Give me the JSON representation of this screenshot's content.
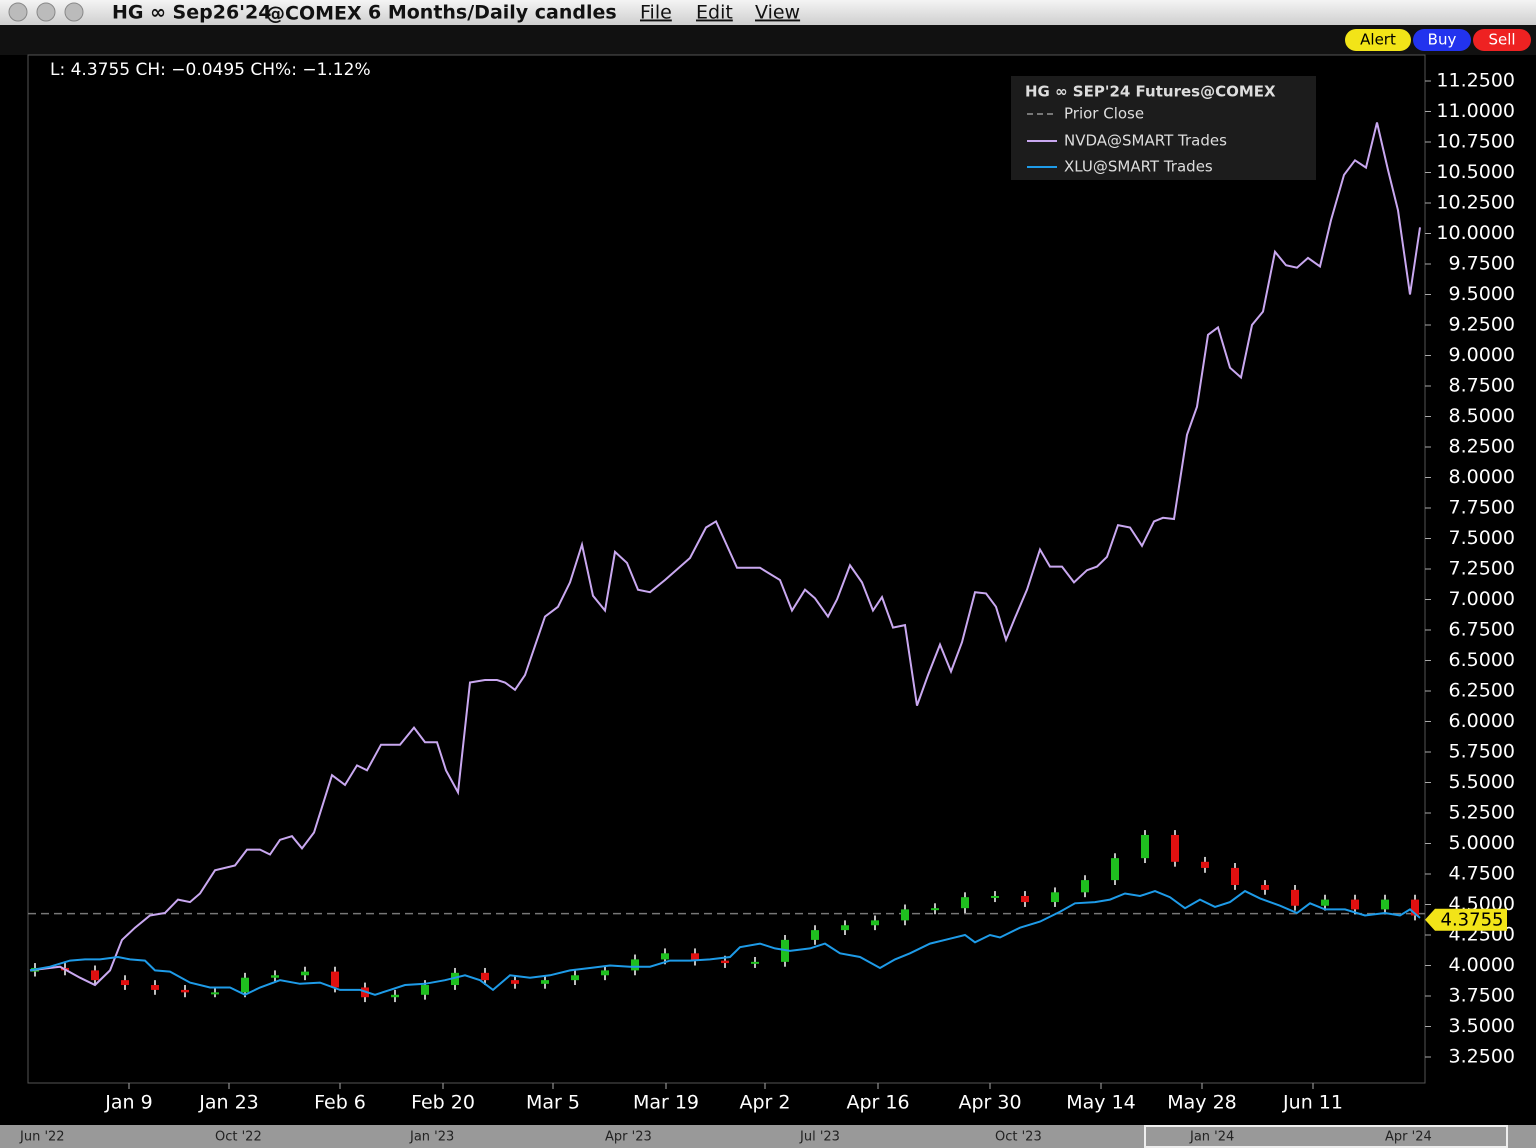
{
  "header": {
    "symbol": "HG ∞ Sep26'24",
    "exchange": "@COMEX",
    "period": "6 Months/Daily candles",
    "menus": [
      "File",
      "Edit",
      "View"
    ],
    "buttons": [
      "Alert",
      "Buy",
      "Sell"
    ]
  },
  "navigator": {
    "labels": [
      "Jun '22",
      "Oct '22",
      "Jan '23",
      "Apr '23",
      "Jul '23",
      "Oct '23",
      "Jan '24",
      "Apr '24"
    ]
  },
  "chart_data": {
    "type": "candlestick",
    "info": "L: 4.3755 CH: −0.0495 CH%: −1.12%",
    "legend_title": "HG ∞ SEP'24 Futures@COMEX",
    "prior_close": {
      "name": "Prior Close",
      "value": 4.425,
      "color": "#777777"
    },
    "last_price": 4.3755,
    "xlim": [
      0,
      139.7
    ],
    "xticks": [
      {
        "value": 10.1,
        "label": "Jan 9"
      },
      {
        "value": 20.1,
        "label": "Jan 23"
      },
      {
        "value": 31.2,
        "label": "Feb 6"
      },
      {
        "value": 41.5,
        "label": "Feb 20"
      },
      {
        "value": 52.5,
        "label": "Mar 5"
      },
      {
        "value": 63.8,
        "label": "Mar 19"
      },
      {
        "value": 73.7,
        "label": "Apr 2"
      },
      {
        "value": 85,
        "label": "Apr 16"
      },
      {
        "value": 96.2,
        "label": "Apr 30"
      },
      {
        "value": 107.3,
        "label": "May 14"
      },
      {
        "value": 117.4,
        "label": "May 28"
      },
      {
        "value": 128.5,
        "label": "Jun 11"
      }
    ],
    "ylim": [
      3.037,
      11.463
    ],
    "yticks": [
      {
        "value": 3.25,
        "label": "3.2500"
      },
      {
        "value": 3.5,
        "label": "3.5000"
      },
      {
        "value": 3.75,
        "label": "3.7500"
      },
      {
        "value": 4,
        "label": "4.0000"
      },
      {
        "value": 4.25,
        "label": "4.2500"
      },
      {
        "value": 4.5,
        "label": "4.5000"
      },
      {
        "value": 4.75,
        "label": "4.7500"
      },
      {
        "value": 5,
        "label": "5.0000"
      },
      {
        "value": 5.25,
        "label": "5.2500"
      },
      {
        "value": 5.5,
        "label": "5.5000"
      },
      {
        "value": 5.75,
        "label": "5.7500"
      },
      {
        "value": 6,
        "label": "6.0000"
      },
      {
        "value": 6.25,
        "label": "6.2500"
      },
      {
        "value": 6.5,
        "label": "6.5000"
      },
      {
        "value": 6.75,
        "label": "6.7500"
      },
      {
        "value": 7,
        "label": "7.0000"
      },
      {
        "value": 7.25,
        "label": "7.2500"
      },
      {
        "value": 7.5,
        "label": "7.5000"
      },
      {
        "value": 7.75,
        "label": "7.7500"
      },
      {
        "value": 8,
        "label": "8.0000"
      },
      {
        "value": 8.25,
        "label": "8.2500"
      },
      {
        "value": 8.5,
        "label": "8.5000"
      },
      {
        "value": 8.75,
        "label": "8.7500"
      },
      {
        "value": 9,
        "label": "9.0000"
      },
      {
        "value": 9.25,
        "label": "9.2500"
      },
      {
        "value": 9.5,
        "label": "9.5000"
      },
      {
        "value": 9.75,
        "label": "9.7500"
      },
      {
        "value": 10,
        "label": "10.0000"
      },
      {
        "value": 10.25,
        "label": "10.2500"
      },
      {
        "value": 10.5,
        "label": "10.5000"
      },
      {
        "value": 10.75,
        "label": "10.7500"
      },
      {
        "value": 11,
        "label": "11.0000"
      },
      {
        "value": 11.25,
        "label": "11.2500"
      }
    ],
    "candles": {
      "up_color": "#1fbf1f",
      "down_color": "#e01010",
      "x": [
        0.7,
        3.7,
        6.7,
        9.7,
        12.7,
        15.7,
        18.7,
        21.7,
        24.7,
        27.7,
        30.7,
        33.7,
        36.7,
        39.7,
        42.7,
        45.7,
        48.7,
        51.7,
        54.7,
        57.7,
        60.7,
        63.7,
        66.7,
        69.7,
        72.7,
        75.7,
        78.7,
        81.7,
        84.7,
        87.7,
        90.7,
        93.7,
        96.7,
        99.7,
        102.7,
        105.7,
        108.7,
        111.7,
        114.7,
        117.7,
        120.7,
        123.7,
        126.7,
        129.7,
        132.7,
        135.7,
        138.7
      ],
      "open": [
        3.95,
        3.98,
        3.96,
        3.88,
        3.84,
        3.8,
        3.78,
        3.78,
        3.9,
        3.92,
        3.95,
        3.82,
        3.74,
        3.76,
        3.84,
        3.94,
        3.88,
        3.85,
        3.88,
        3.92,
        3.96,
        4.05,
        4.1,
        4.04,
        4.02,
        4.03,
        4.21,
        4.29,
        4.33,
        4.37,
        4.46,
        4.47,
        4.56,
        4.57,
        4.52,
        4.6,
        4.7,
        4.88,
        5.07,
        4.85,
        4.8,
        4.66,
        4.62,
        4.49,
        4.54,
        4.46,
        4.54
      ],
      "high": [
        4.02,
        4.02,
        4.0,
        3.92,
        3.88,
        3.84,
        3.82,
        3.94,
        3.96,
        3.99,
        3.99,
        3.86,
        3.8,
        3.88,
        3.98,
        3.98,
        3.92,
        3.92,
        3.96,
        4.0,
        4.09,
        4.14,
        4.14,
        4.08,
        4.07,
        4.25,
        4.33,
        4.37,
        4.41,
        4.5,
        4.51,
        4.6,
        4.61,
        4.61,
        4.64,
        4.74,
        4.92,
        5.11,
        5.11,
        4.89,
        4.84,
        4.7,
        4.66,
        4.58,
        4.58,
        4.58,
        4.58
      ],
      "low": [
        3.91,
        3.92,
        3.84,
        3.8,
        3.76,
        3.74,
        3.74,
        3.74,
        3.86,
        3.88,
        3.78,
        3.7,
        3.7,
        3.72,
        3.8,
        3.84,
        3.81,
        3.81,
        3.84,
        3.88,
        3.92,
        4.01,
        4.0,
        3.98,
        3.98,
        3.99,
        4.17,
        4.25,
        4.29,
        4.33,
        4.42,
        4.43,
        4.52,
        4.48,
        4.48,
        4.56,
        4.66,
        4.84,
        4.81,
        4.76,
        4.62,
        4.58,
        4.45,
        4.45,
        4.42,
        4.42,
        4.37
      ],
      "close": [
        3.98,
        3.96,
        3.88,
        3.84,
        3.8,
        3.78,
        3.78,
        3.9,
        3.92,
        3.95,
        3.82,
        3.74,
        3.76,
        3.84,
        3.94,
        3.88,
        3.85,
        3.88,
        3.92,
        3.96,
        4.05,
        4.1,
        4.04,
        4.02,
        4.03,
        4.21,
        4.29,
        4.33,
        4.37,
        4.46,
        4.47,
        4.56,
        4.57,
        4.52,
        4.6,
        4.7,
        4.88,
        5.07,
        4.85,
        4.8,
        4.66,
        4.62,
        4.49,
        4.54,
        4.46,
        4.54,
        4.41
      ]
    },
    "series": [
      {
        "name": "NVDA@SMART Trades",
        "color": "#c9a8f0",
        "x": [
          0.2,
          3.2,
          5.2,
          6.7,
          8.2,
          9.4,
          10.7,
          12.2,
          13.7,
          15,
          16.2,
          17.2,
          18.7,
          20.7,
          21.9,
          23.2,
          24.2,
          25.2,
          26.4,
          27.4,
          28.6,
          30.4,
          31.7,
          32.9,
          33.9,
          35.3,
          37.2,
          38.6,
          39.7,
          40.9,
          41.8,
          43,
          44.2,
          45.7,
          46.9,
          47.7,
          48.7,
          49.7,
          51.7,
          53,
          54.2,
          55.4,
          56.5,
          57.7,
          58.7,
          59.9,
          61,
          62.2,
          63.7,
          66.2,
          66.9,
          67.8,
          68.8,
          70.9,
          73.2,
          75.2,
          76.4,
          77.7,
          78.7,
          80,
          80.9,
          82.2,
          83.4,
          84.5,
          85.4,
          86.5,
          87.7,
          88.9,
          90,
          91.2,
          92.3,
          93.4,
          94.7,
          95.8,
          96.8,
          97.8,
          98.7,
          99.9,
          101.2,
          102.2,
          103.4,
          104.6,
          105.9,
          106.9,
          107.9,
          109,
          110.2,
          111.4,
          112.6,
          113.5,
          114.6,
          115.9,
          116.9,
          118,
          119,
          120.2,
          121.3,
          122.4,
          123.5,
          124.7,
          125.8,
          126.9,
          128,
          129.2,
          130.3,
          131.6,
          132.7,
          133.8,
          134.9,
          136,
          137,
          138.2,
          139.2
        ],
        "values": [
          3.96,
          3.99,
          3.9,
          3.84,
          3.96,
          4.21,
          4.31,
          4.41,
          4.43,
          4.54,
          4.52,
          4.59,
          4.78,
          4.82,
          4.95,
          4.95,
          4.91,
          5.03,
          5.06,
          4.96,
          5.09,
          5.56,
          5.48,
          5.64,
          5.6,
          5.81,
          5.81,
          5.95,
          5.83,
          5.83,
          5.6,
          5.42,
          6.32,
          6.34,
          6.34,
          6.32,
          6.26,
          6.38,
          6.86,
          6.94,
          7.14,
          7.45,
          7.03,
          6.91,
          7.39,
          7.3,
          7.08,
          7.06,
          7.16,
          7.34,
          7.45,
          7.59,
          7.64,
          7.26,
          7.26,
          7.16,
          6.91,
          7.08,
          7.01,
          6.86,
          7.0,
          7.28,
          7.14,
          6.91,
          7.02,
          6.77,
          6.79,
          6.13,
          6.38,
          6.63,
          6.41,
          6.65,
          7.06,
          7.05,
          6.94,
          6.67,
          6.85,
          7.08,
          7.41,
          7.27,
          7.27,
          7.14,
          7.24,
          7.27,
          7.35,
          7.61,
          7.59,
          7.44,
          7.64,
          7.67,
          7.66,
          8.35,
          8.58,
          9.17,
          9.23,
          8.9,
          8.82,
          9.25,
          9.36,
          9.85,
          9.74,
          9.72,
          9.8,
          9.73,
          10.11,
          10.48,
          10.6,
          10.54,
          10.91,
          10.52,
          10.19,
          9.5,
          10.05
        ]
      },
      {
        "name": "XLU@SMART Trades",
        "color": "#1e9be8",
        "x": [
          0.2,
          2.2,
          4.2,
          5.7,
          7.2,
          9,
          10.2,
          11.7,
          12.7,
          14.2,
          16.2,
          18.2,
          20.2,
          21.7,
          23.2,
          25.2,
          27.2,
          29.2,
          31.2,
          33.2,
          34.7,
          36.2,
          37.7,
          39.7,
          41.7,
          43.7,
          45.2,
          46.5,
          48.2,
          50.2,
          52.2,
          54.2,
          56.2,
          58.2,
          60.2,
          62.2,
          64.2,
          66.2,
          68.2,
          70.2,
          71.2,
          73.2,
          74.7,
          76.2,
          78.2,
          79.7,
          81.2,
          83.2,
          85.2,
          86.7,
          88.2,
          90.2,
          92.2,
          93.7,
          94.7,
          96.2,
          97.2,
          99.2,
          101.2,
          103.2,
          104.7,
          106.7,
          108.2,
          109.7,
          111.2,
          112.7,
          114.2,
          115.7,
          117.2,
          118.7,
          120.2,
          121.7,
          123.2,
          125.2,
          126.9,
          128.2,
          129.7,
          131.7,
          133.7,
          135.7,
          137.2,
          138.2,
          139.2
        ],
        "values": [
          3.96,
          3.99,
          4.04,
          4.05,
          4.05,
          4.07,
          4.05,
          4.04,
          3.96,
          3.95,
          3.86,
          3.82,
          3.82,
          3.76,
          3.82,
          3.88,
          3.85,
          3.86,
          3.8,
          3.8,
          3.76,
          3.8,
          3.84,
          3.85,
          3.88,
          3.92,
          3.88,
          3.8,
          3.92,
          3.9,
          3.92,
          3.96,
          3.98,
          4.0,
          3.99,
          3.99,
          4.04,
          4.04,
          4.05,
          4.07,
          4.15,
          4.18,
          4.14,
          4.12,
          4.14,
          4.18,
          4.1,
          4.07,
          3.98,
          4.05,
          4.1,
          4.18,
          4.22,
          4.25,
          4.19,
          4.25,
          4.23,
          4.31,
          4.36,
          4.44,
          4.51,
          4.52,
          4.54,
          4.59,
          4.57,
          4.61,
          4.56,
          4.47,
          4.54,
          4.48,
          4.52,
          4.61,
          4.55,
          4.49,
          4.43,
          4.51,
          4.46,
          4.46,
          4.41,
          4.43,
          4.41,
          4.46,
          4.39
        ]
      }
    ]
  }
}
